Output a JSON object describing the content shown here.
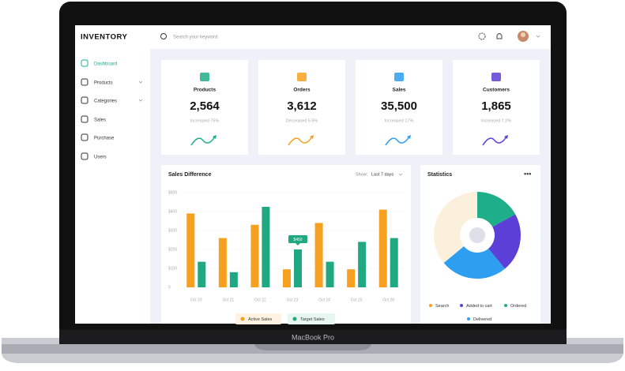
{
  "header": {
    "brand": "INVENTORY",
    "search_placeholder": "Search your keyword"
  },
  "sidebar": {
    "items": [
      "Dashboard",
      "Products",
      "Categories",
      "Sales",
      "Purchase",
      "Users"
    ]
  },
  "cards": [
    {
      "title": "Products",
      "value": "2,564",
      "change": "Increased 75%"
    },
    {
      "title": "Orders",
      "value": "3,612",
      "change": "Decreased 5.5%"
    },
    {
      "title": "Sales",
      "value": "35,500",
      "change": "Increased 17%"
    },
    {
      "title": "Customers",
      "value": "1,865",
      "change": "Increased 7.2%"
    }
  ],
  "chart_data": [
    {
      "type": "bar",
      "title": "Sales Difference",
      "filter": {
        "label": "Show:",
        "value": "Last 7 days"
      },
      "categories": [
        "Oct 20",
        "Oct 21",
        "Oct 22",
        "Oct 23",
        "Oct 24",
        "Oct 25",
        "Oct 26"
      ],
      "series": [
        {
          "name": "Active Sales",
          "color": "#f7a01f",
          "values": [
            390,
            260,
            330,
            95,
            340,
            95,
            410
          ]
        },
        {
          "name": "Target Sales",
          "color": "#20a882",
          "values": [
            135,
            80,
            425,
            200,
            135,
            240,
            260
          ]
        }
      ],
      "annotation": "$450",
      "ylim": [
        0,
        500
      ],
      "yticks": [
        0,
        {
          "value": 100,
          "label": "$100"
        },
        {
          "value": 200,
          "label": "$200"
        },
        {
          "value": 300,
          "label": "$300"
        },
        {
          "value": 400,
          "label": "$400"
        },
        {
          "value": 500,
          "label": "$500"
        }
      ],
      "grid": true
    },
    {
      "type": "pie",
      "title": "Statistics",
      "categories": [
        "Ordered",
        "Added to cart",
        "Delivered",
        "Search"
      ],
      "values": [
        17,
        22,
        25,
        36
      ],
      "colors": [
        "#1fae8a",
        "#5b3fd6",
        "#2d9ef0",
        "#fbf0dc"
      ]
    }
  ],
  "device": {
    "label": "MacBook Pro"
  }
}
